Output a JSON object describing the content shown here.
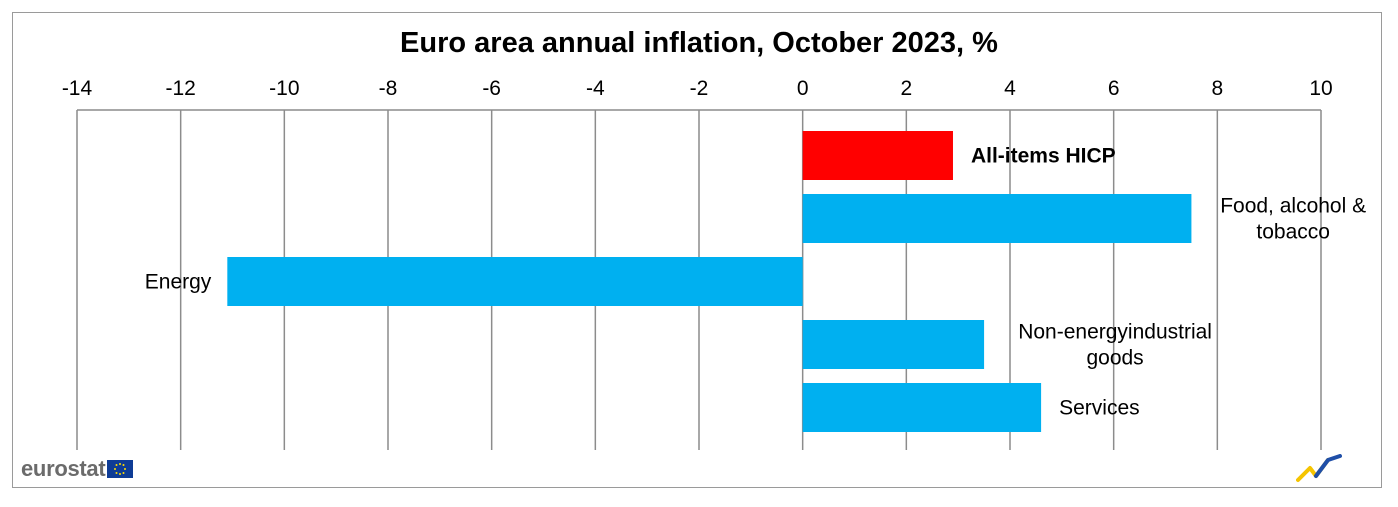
{
  "chart_data": {
    "type": "bar",
    "orientation": "horizontal",
    "title": "Euro area annual inflation, October 2023, %",
    "xlim": [
      -14,
      10
    ],
    "ticks": [
      -14,
      -12,
      -10,
      -8,
      -6,
      -4,
      -2,
      0,
      2,
      4,
      6,
      8,
      10
    ],
    "axis_position": "top",
    "grid": "vertical",
    "categories": [
      "All-items HICP",
      "Food, alcohol & tobacco",
      "Energy",
      "Non-energyindustrial goods",
      "Services"
    ],
    "category_lines": [
      [
        "All-items HICP"
      ],
      [
        "Food, alcohol &",
        "tobacco"
      ],
      [
        "Energy"
      ],
      [
        "Non-energyindustrial",
        "goods"
      ],
      [
        "Services"
      ]
    ],
    "values": [
      2.9,
      7.5,
      -11.1,
      3.5,
      4.6
    ],
    "colors": [
      "#ff0000",
      "#00b0f0",
      "#00b0f0",
      "#00b0f0",
      "#00b0f0"
    ],
    "bold_labels": [
      true,
      false,
      false,
      false,
      false
    ]
  },
  "branding": {
    "logo_text": "eurostat",
    "flag_color": "#0e3c96",
    "flag_star_color": "#ffdd00"
  }
}
